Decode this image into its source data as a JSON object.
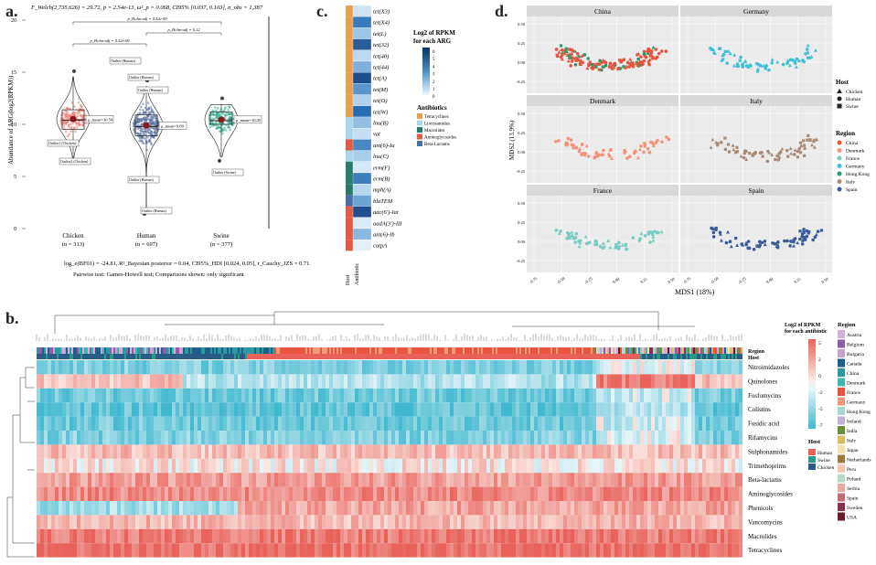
{
  "panels": {
    "a": "a.",
    "b": "b.",
    "c": "c.",
    "d": "d."
  },
  "panel_a": {
    "stats_top": "F_Welch(2,735.626) = 29.72, p = 2.54e-13, ω²_p = 0.068, CI95% [0.037, 0.103], n_obs = 1,387",
    "stats_bottom": "log_e(BF01) = -24.81, R²_Bayesian posterior = 0.04, CI95%_HDI [0.024, 0.05], r_Cauchy_JZS = 0.71",
    "posthoc_note": "Pairwise test: Games-Howell test; Comparisons shown: only significant",
    "ylabel": "Abundance of ARG(log2(RPKM))",
    "yticks": [
      20,
      15,
      10,
      5,
      0
    ],
    "groups": [
      {
        "name": "Chicken",
        "n": "(n = 313)",
        "color": "#e8776b",
        "mean": 10.5,
        "mean_label": "μ_mean=10.50",
        "q1": 9.5,
        "q3": 11.4,
        "min": 6.8,
        "max": 14.6
      },
      {
        "name": "Human",
        "n": "(n = 697)",
        "color": "#5a6f9e",
        "mean": 9.89,
        "mean_label": "μ_mean=9.89",
        "q1": 8.9,
        "q3": 10.9,
        "min": 1.8,
        "max": 13.7
      },
      {
        "name": "Swine",
        "n": "(n = 377)",
        "color": "#2aa889",
        "mean": 10.45,
        "mean_label": "μ_mean=10.45",
        "q1": 10.0,
        "q3": 11.2,
        "min": 6.9,
        "max": 12.0
      }
    ],
    "outlier_labels": [
      "Outlier1 (Chicken)",
      "Outlier2 (Chicken)",
      "Outlier (Human)",
      "Outlier (Human)",
      "Outlier (Human)",
      "Outlier (Human)",
      "Outlier (Human)",
      "Outlier (Swine)"
    ],
    "sig_bars": [
      {
        "label": "p_Holm-adj = 4.32e-09"
      },
      {
        "label": "p_Holm-adj = 0.12"
      },
      {
        "label": "p_Holm-adj = 4.32e-09"
      }
    ]
  },
  "panel_c": {
    "genes": [
      "tet(X3)",
      "tet(X4)",
      "tet(L)",
      "tet(32)",
      "tet(40)",
      "tet(44)",
      "tet(A)",
      "tet(M)",
      "tet(O)",
      "tet(W)",
      "lnu(B)",
      "vat",
      "ant(6)-Ia",
      "lnu(C)",
      "erm(F)",
      "erm(B)",
      "mph(A)",
      "blaTEM",
      "aac(6')-Iai",
      "aadA(3')-III",
      "ant(6)-Ib",
      "catpA"
    ],
    "col_labels": [
      "Host",
      "Antibiotic"
    ],
    "legend_title": "Log2 of RPKM for each ARG",
    "legend_ticks": [
      6,
      5,
      4,
      3,
      2,
      1,
      0
    ],
    "antibiotic_title": "Antibiotics",
    "antibiotics": [
      {
        "name": "Tetracyclines",
        "color": "#e8a050"
      },
      {
        "name": "Lincosamides",
        "color": "#a8d8e8"
      },
      {
        "name": "Macrolides",
        "color": "#2a7c6a"
      },
      {
        "name": "Aminoglycosides",
        "color": "#e35b47"
      },
      {
        "name": "Beta-Lactams",
        "color": "#4a6fa5"
      }
    ]
  },
  "panel_d": {
    "facets": [
      "China",
      "Germany",
      "Denmark",
      "Italy",
      "France",
      "Spain"
    ],
    "xlabel": "MDS1 (18%)",
    "ylabel": "MDS2 (13.9%)",
    "xticks": [
      "-0.75",
      "-0.50",
      "-0.25",
      "0.00",
      "0.25",
      "0.50"
    ],
    "yticks": [
      "0.50",
      "0.25",
      "0.00",
      "-0.25"
    ],
    "host_title": "Host",
    "hosts": [
      {
        "name": "Chicken",
        "shape": "triangle"
      },
      {
        "name": "Human",
        "shape": "circle"
      },
      {
        "name": "Swine",
        "shape": "square"
      }
    ],
    "region_title": "Region",
    "regions": [
      {
        "name": "China",
        "color": "#e8543c"
      },
      {
        "name": "Denmark",
        "color": "#f3937a"
      },
      {
        "name": "France",
        "color": "#78ccc4"
      },
      {
        "name": "Germany",
        "color": "#40c0d8"
      },
      {
        "name": "Hong Kong",
        "color": "#2a9a6c"
      },
      {
        "name": "Italy",
        "color": "#a88c78"
      },
      {
        "name": "Spain",
        "color": "#3a5c9a"
      }
    ]
  },
  "panel_b": {
    "rows": [
      "Nitroimidazoles",
      "Quinolones",
      "Fosfomycins",
      "Colistins",
      "Fusidic acid",
      "Rifamycins",
      "Sulphonamides",
      "Trimethoprims",
      "Beta-lactams",
      "Aminoglycosides",
      "Phenicols",
      "Vancomycins",
      "Macrolides",
      "Tetracyclines"
    ],
    "annotation_rows": [
      "Region",
      "Host"
    ],
    "legend_title": "Log2 of RPKM for each antibiotic",
    "legend_ticks": [
      "5",
      "2",
      "0",
      "-2",
      "-5",
      "-7"
    ],
    "host_title": "Host",
    "hosts": [
      {
        "name": "Human",
        "color": "#e8625a"
      },
      {
        "name": "Swine",
        "color": "#2a9a8a"
      },
      {
        "name": "Chicken",
        "color": "#2a5c8a"
      }
    ],
    "region_title": "Region",
    "regions": [
      {
        "name": "Austria",
        "color": "#d1b2d9"
      },
      {
        "name": "Belgium",
        "color": "#8a5fa8"
      },
      {
        "name": "Bulgaria",
        "color": "#c9a3cf"
      },
      {
        "name": "Canada",
        "color": "#1f5f8b"
      },
      {
        "name": "China",
        "color": "#2a9aa0"
      },
      {
        "name": "Denmark",
        "color": "#3fb8b0"
      },
      {
        "name": "France",
        "color": "#e8543c"
      },
      {
        "name": "Germany",
        "color": "#f29a7e"
      },
      {
        "name": "Hong Kong",
        "color": "#a8d8d0"
      },
      {
        "name": "Ireland",
        "color": "#bfb3d9"
      },
      {
        "name": "India",
        "color": "#6c8f3a"
      },
      {
        "name": "Italy",
        "color": "#d8c060"
      },
      {
        "name": "Japan",
        "color": "#f1e3b0"
      },
      {
        "name": "Netherlands",
        "color": "#9b7a3e"
      },
      {
        "name": "Peru",
        "color": "#f2c9b0"
      },
      {
        "name": "Poland",
        "color": "#b8d8c8"
      },
      {
        "name": "Serbia",
        "color": "#e8a8a0"
      },
      {
        "name": "Spain",
        "color": "#c26a7a"
      },
      {
        "name": "Sweden",
        "color": "#8a3050"
      },
      {
        "name": "USA",
        "color": "#6a1a2a"
      }
    ]
  },
  "chart_data": [
    {
      "type": "box",
      "panel": "a",
      "categories": [
        "Chicken",
        "Human",
        "Swine"
      ],
      "means": [
        10.5,
        9.89,
        10.45
      ],
      "n": [
        313,
        697,
        377
      ],
      "ylim": [
        0,
        20
      ],
      "ylabel": "Abundance of ARG(log2(RPKM))"
    },
    {
      "type": "heatmap",
      "panel": "c",
      "rows": 22,
      "cols": 2
    },
    {
      "type": "scatter",
      "panel": "d",
      "facets": [
        "China",
        "Germany",
        "Denmark",
        "Italy",
        "France",
        "Spain"
      ],
      "xlim": [
        -0.75,
        0.5
      ],
      "ylim": [
        -0.4,
        0.5
      ]
    },
    {
      "type": "heatmap",
      "panel": "b",
      "rows": 14
    }
  ]
}
